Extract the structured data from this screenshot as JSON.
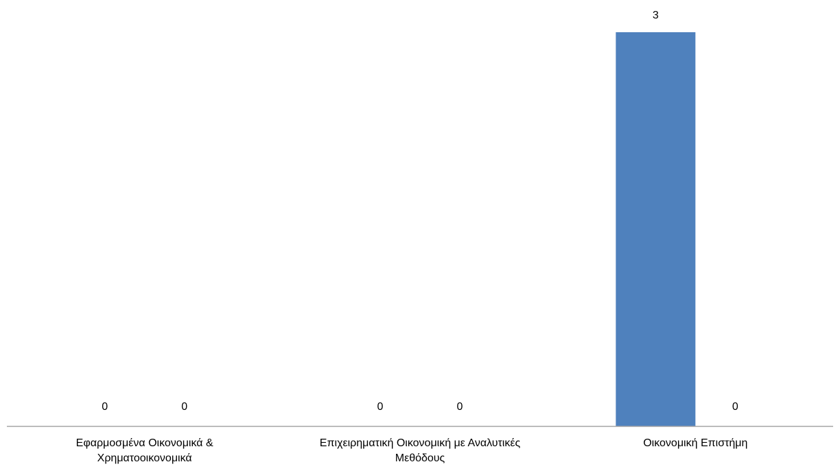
{
  "chart_data": {
    "type": "bar",
    "categories": [
      "Εφαρμοσμένα Οικονομικά & Χρηματοοικονομικά",
      "Επιχειρηματική Οικονομική με Αναλυτικές Μεθόδους",
      "Οικονομική Επιστήμη"
    ],
    "series": [
      {
        "values": [
          0,
          0,
          3
        ],
        "color": "#4f81bd"
      },
      {
        "values": [
          0,
          0,
          0
        ],
        "color": "#c0504d"
      }
    ],
    "title": "",
    "xlabel": "",
    "ylabel": "",
    "ylim": [
      0,
      3
    ],
    "grid": false,
    "legend": "none",
    "data_labels": true
  }
}
